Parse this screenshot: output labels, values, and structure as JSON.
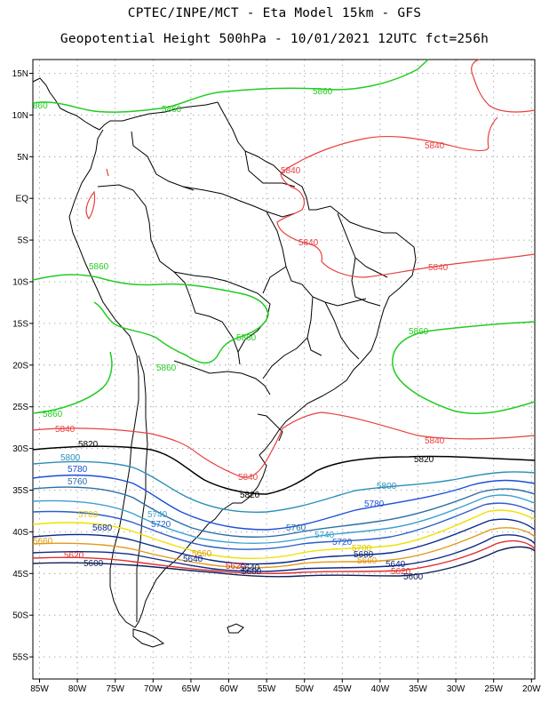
{
  "title_line1": "CPTEC/INPE/MCT -  Eta Model 15km - GFS",
  "title_line2": "Geopotential Height 500hPa - 10/01/2021 12UTC fct=256h",
  "lat_labels": [
    "15N",
    "10N",
    "5N",
    "EQ",
    "5S",
    "10S",
    "15S",
    "20S",
    "25S",
    "30S",
    "35S",
    "40S",
    "45S",
    "50S",
    "55S"
  ],
  "lon_labels": [
    "85W",
    "80W",
    "75W",
    "70W",
    "65W",
    "60W",
    "55W",
    "50W",
    "45W",
    "40W",
    "35W",
    "30W",
    "25W",
    "20W"
  ],
  "colors": {
    "c5860": "#22cc22",
    "c5840": "#e84040",
    "c5820": "#000000",
    "c5800": "#2a8fb8",
    "c5780": "#1a4fd8",
    "c5760": "#2a6fa8",
    "c5740": "#3aa0d0",
    "c5720": "#2a5fc8",
    "c5700": "#f0e000",
    "c5680": "#08288a",
    "c5660": "#e09a18",
    "c5640": "#102a8a",
    "c5620": "#e03030",
    "c5600": "#10205a",
    "coast": "#000000",
    "grid": "#888888"
  },
  "contour_labels": [
    {
      "id": "l5860a",
      "text": "5860"
    },
    {
      "id": "l5860b",
      "text": "5860"
    },
    {
      "id": "l5860c",
      "text": "5860"
    },
    {
      "id": "l5860d",
      "text": "5860"
    },
    {
      "id": "l5860e",
      "text": "5860"
    },
    {
      "id": "l5860f",
      "text": "5860"
    },
    {
      "id": "l5860g",
      "text": "5860"
    },
    {
      "id": "l5860h",
      "text": "860"
    },
    {
      "id": "l5840a",
      "text": "5840"
    },
    {
      "id": "l5840b",
      "text": "5840"
    },
    {
      "id": "l5840c",
      "text": "5840"
    },
    {
      "id": "l5840d",
      "text": "5840"
    },
    {
      "id": "l5840e",
      "text": "5840"
    },
    {
      "id": "l5840f",
      "text": "5840"
    },
    {
      "id": "l5840g",
      "text": "5840"
    },
    {
      "id": "l5820a",
      "text": "5820"
    },
    {
      "id": "l5820b",
      "text": "5820"
    },
    {
      "id": "l5820c",
      "text": "5820"
    },
    {
      "id": "l5800a",
      "text": "5800"
    },
    {
      "id": "l5800b",
      "text": "5800"
    },
    {
      "id": "l5780a",
      "text": "5780"
    },
    {
      "id": "l5780b",
      "text": "5780"
    },
    {
      "id": "l5760a",
      "text": "5760"
    },
    {
      "id": "l5760b",
      "text": "5760"
    },
    {
      "id": "l5740a",
      "text": "5740"
    },
    {
      "id": "l5740b",
      "text": "5740"
    },
    {
      "id": "l5720a",
      "text": "5720"
    },
    {
      "id": "l5720b",
      "text": "5720"
    },
    {
      "id": "l5700a",
      "text": "5700"
    },
    {
      "id": "l5700b",
      "text": "5700"
    },
    {
      "id": "l5680a",
      "text": "5680"
    },
    {
      "id": "l5680b",
      "text": "5680"
    },
    {
      "id": "l5660a",
      "text": "5660"
    },
    {
      "id": "l5660b",
      "text": "5660"
    },
    {
      "id": "l5660c",
      "text": "5660"
    },
    {
      "id": "l5640a",
      "text": "5640"
    },
    {
      "id": "l5640b",
      "text": "5640"
    },
    {
      "id": "l5640c",
      "text": "5640"
    },
    {
      "id": "l5620a",
      "text": "5620"
    },
    {
      "id": "l5620b",
      "text": "5620"
    },
    {
      "id": "l5620c",
      "text": "5620"
    },
    {
      "id": "l5600a",
      "text": "5600"
    },
    {
      "id": "l5600b",
      "text": "5600"
    },
    {
      "id": "l5600c",
      "text": "5600"
    }
  ]
}
